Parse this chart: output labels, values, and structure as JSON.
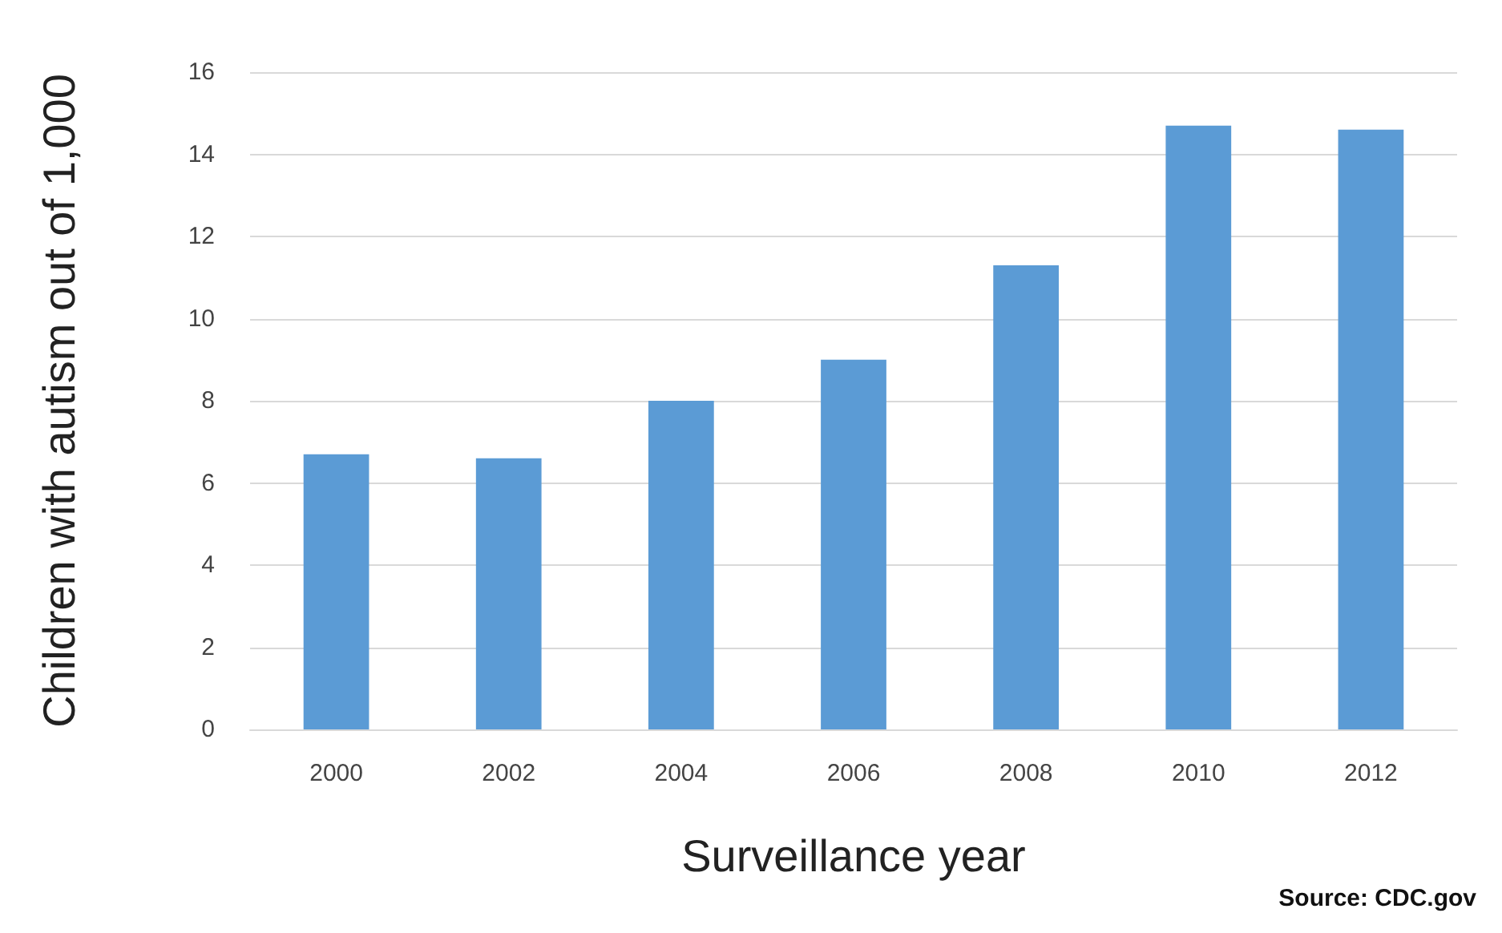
{
  "chart_data": {
    "type": "bar",
    "categories": [
      "2000",
      "2002",
      "2004",
      "2006",
      "2008",
      "2010",
      "2012"
    ],
    "values": [
      6.7,
      6.6,
      8.0,
      9.0,
      11.3,
      14.7,
      14.6
    ],
    "color": "#5b9bd5",
    "ylabel": "Children with autism out of 1,000",
    "xlabel": "Surveillance year",
    "ylim": [
      0,
      16
    ],
    "yticks": [
      0,
      2,
      4,
      6,
      8,
      10,
      12,
      14,
      16
    ],
    "grid": "y",
    "annotations": [
      "Source: CDC.gov"
    ]
  }
}
